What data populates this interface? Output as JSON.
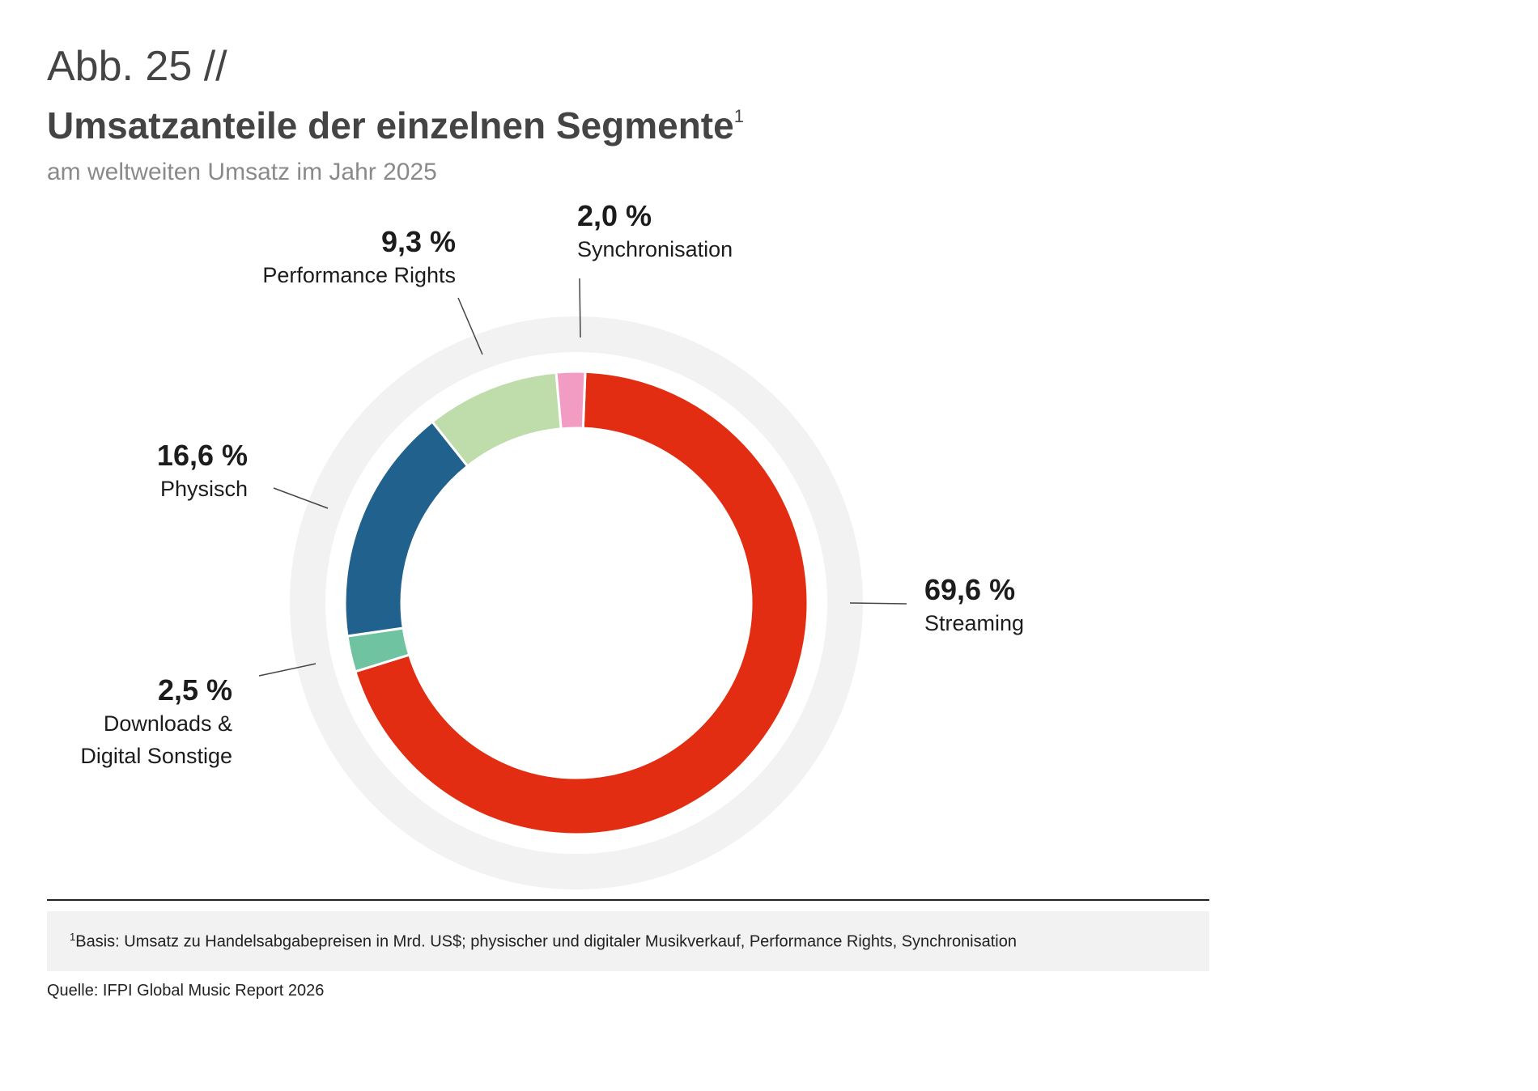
{
  "header": {
    "figure_no": "Abb. 25 //",
    "title": "Umsatzanteile der einzelnen Segmente",
    "title_footnote_mark": "1",
    "subtitle": "am weltweiten Umsatz im Jahr 2025"
  },
  "chart_data": {
    "type": "pie",
    "variant": "donut",
    "title": "Umsatzanteile der einzelnen Segmente",
    "subtitle": "am weltweiten Umsatz im Jahr 2025",
    "unit": "%",
    "slices": [
      {
        "name": "Streaming",
        "value": 69.6,
        "label": "69,6 %",
        "color": "#e32d13"
      },
      {
        "name": "Downloads & Digital Sonstige",
        "label_lines": [
          "Downloads &",
          "Digital Sonstige"
        ],
        "value": 2.5,
        "label": "2,5 %",
        "color": "#6fc3a1"
      },
      {
        "name": "Physisch",
        "value": 16.6,
        "label": "16,6 %",
        "color": "#21618e"
      },
      {
        "name": "Performance Rights",
        "value": 9.3,
        "label": "9,3 %",
        "color": "#bfdcab"
      },
      {
        "name": "Synchronisation",
        "value": 2.0,
        "label": "2,0 %",
        "color": "#f29cc4"
      }
    ],
    "ring_background_color": "#f2f2f2"
  },
  "footnote": {
    "mark": "1",
    "text": "Basis: Umsatz zu Handelsabgabepreisen in Mrd. US$; physischer und digitaler Musikverkauf, Performance Rights, Synchronisation"
  },
  "source": "Quelle: IFPI Global Music Report 2026"
}
